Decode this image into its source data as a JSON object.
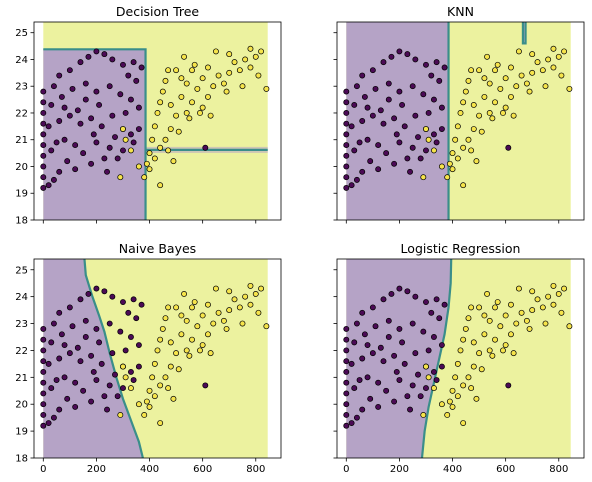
{
  "chart_data": [
    {
      "type": "scatter",
      "title": "Decision Tree",
      "xlabel": "",
      "ylabel": "",
      "xlim": [
        -35,
        895
      ],
      "ylim": [
        18,
        25.4
      ],
      "xticks": [
        "0",
        "200",
        "400",
        "600",
        "800"
      ],
      "yticks": [
        "18",
        "19",
        "20",
        "21",
        "22",
        "23",
        "24",
        "25"
      ],
      "show_xtick_labels": false,
      "show_ytick_labels": true,
      "grid": false,
      "colors": {
        "class_0_region": "#b5a3c6",
        "class_1_region": "#ecf29f",
        "boundary": "#3a8e8a",
        "class_0_point": "#4b0a55",
        "class_1_point": "#f6e44b",
        "edge": "#000000"
      },
      "boundary_kind": "tree"
    },
    {
      "type": "scatter",
      "title": "KNN",
      "xlabel": "",
      "ylabel": "",
      "xlim": [
        -35,
        895
      ],
      "ylim": [
        18,
        25.4
      ],
      "xticks": [
        "0",
        "200",
        "400",
        "600",
        "800"
      ],
      "yticks": [
        "18",
        "19",
        "20",
        "21",
        "22",
        "23",
        "24",
        "25"
      ],
      "show_xtick_labels": false,
      "show_ytick_labels": false,
      "grid": false,
      "colors": {
        "class_0_region": "#b5a3c6",
        "class_1_region": "#ecf29f",
        "boundary": "#3a8e8a",
        "class_0_point": "#4b0a55",
        "class_1_point": "#f6e44b",
        "edge": "#000000"
      },
      "boundary_kind": "knn"
    },
    {
      "type": "scatter",
      "title": "Naive Bayes",
      "xlabel": "",
      "ylabel": "",
      "xlim": [
        -35,
        895
      ],
      "ylim": [
        18,
        25.4
      ],
      "xticks": [
        "0",
        "200",
        "400",
        "600",
        "800"
      ],
      "yticks": [
        "18",
        "19",
        "20",
        "21",
        "22",
        "23",
        "24",
        "25"
      ],
      "show_xtick_labels": true,
      "show_ytick_labels": true,
      "grid": false,
      "colors": {
        "class_0_region": "#b5a3c6",
        "class_1_region": "#ecf29f",
        "boundary": "#3a8e8a",
        "class_0_point": "#4b0a55",
        "class_1_point": "#f6e44b",
        "edge": "#000000"
      },
      "boundary_kind": "nb"
    },
    {
      "type": "scatter",
      "title": "Logistic Regression",
      "xlabel": "",
      "ylabel": "",
      "xlim": [
        -35,
        895
      ],
      "ylim": [
        18,
        25.4
      ],
      "xticks": [
        "0",
        "200",
        "400",
        "600",
        "800"
      ],
      "yticks": [
        "18",
        "19",
        "20",
        "21",
        "22",
        "23",
        "24",
        "25"
      ],
      "show_xtick_labels": true,
      "show_ytick_labels": false,
      "grid": false,
      "colors": {
        "class_0_region": "#b5a3c6",
        "class_1_region": "#ecf29f",
        "boundary": "#3a8e8a",
        "class_0_point": "#4b0a55",
        "class_1_point": "#f6e44b",
        "edge": "#000000"
      },
      "boundary_kind": "lr"
    }
  ],
  "scatter_points": {
    "class_0": [
      [
        0,
        19.2
      ],
      [
        0,
        19.6
      ],
      [
        0,
        20.0
      ],
      [
        0,
        20.4
      ],
      [
        0,
        20.8
      ],
      [
        0,
        21.2
      ],
      [
        0,
        21.6
      ],
      [
        0,
        22.0
      ],
      [
        0,
        22.4
      ],
      [
        0,
        22.8
      ],
      [
        20,
        19.3
      ],
      [
        40,
        19.5
      ],
      [
        60,
        19.8
      ],
      [
        30,
        20.6
      ],
      [
        50,
        20.9
      ],
      [
        80,
        21.0
      ],
      [
        120,
        20.8
      ],
      [
        150,
        20.5
      ],
      [
        200,
        20.9
      ],
      [
        250,
        20.7
      ],
      [
        280,
        20.3
      ],
      [
        20,
        21.5
      ],
      [
        60,
        21.7
      ],
      [
        100,
        21.9
      ],
      [
        140,
        21.6
      ],
      [
        180,
        21.8
      ],
      [
        220,
        21.5
      ],
      [
        260,
        21.9
      ],
      [
        300,
        21.4
      ],
      [
        330,
        21.2
      ],
      [
        30,
        22.3
      ],
      [
        70,
        22.6
      ],
      [
        110,
        22.9
      ],
      [
        160,
        23.1
      ],
      [
        200,
        22.8
      ],
      [
        250,
        23.0
      ],
      [
        290,
        22.7
      ],
      [
        330,
        22.5
      ],
      [
        360,
        22.2
      ],
      [
        60,
        23.4
      ],
      [
        100,
        23.6
      ],
      [
        140,
        23.9
      ],
      [
        170,
        24.1
      ],
      [
        200,
        24.3
      ],
      [
        230,
        24.2
      ],
      [
        260,
        24.0
      ],
      [
        300,
        23.8
      ],
      [
        340,
        23.9
      ],
      [
        120,
        19.9
      ],
      [
        180,
        20.1
      ],
      [
        240,
        19.8
      ],
      [
        300,
        20.6
      ],
      [
        340,
        20.9
      ],
      [
        360,
        21.4
      ],
      [
        90,
        20.2
      ],
      [
        210,
        22.3
      ],
      [
        130,
        22.1
      ],
      [
        320,
        23.4
      ],
      [
        40,
        23.0
      ],
      [
        80,
        22.2
      ],
      [
        160,
        22.5
      ],
      [
        190,
        21.2
      ],
      [
        230,
        20.3
      ],
      [
        270,
        21.1
      ],
      [
        310,
        22.0
      ],
      [
        350,
        23.2
      ],
      [
        370,
        23.7
      ],
      [
        610,
        20.7
      ]
    ],
    "class_1": [
      [
        380,
        19.6
      ],
      [
        390,
        20.1
      ],
      [
        400,
        20.5
      ],
      [
        410,
        21.0
      ],
      [
        420,
        21.5
      ],
      [
        430,
        22.0
      ],
      [
        440,
        22.4
      ],
      [
        450,
        22.8
      ],
      [
        460,
        23.2
      ],
      [
        470,
        23.6
      ],
      [
        480,
        22.3
      ],
      [
        500,
        21.9
      ],
      [
        520,
        22.6
      ],
      [
        540,
        23.1
      ],
      [
        560,
        22.4
      ],
      [
        580,
        22.9
      ],
      [
        600,
        23.3
      ],
      [
        620,
        22.6
      ],
      [
        640,
        23.0
      ],
      [
        660,
        23.4
      ],
      [
        680,
        23.1
      ],
      [
        700,
        23.5
      ],
      [
        720,
        23.9
      ],
      [
        740,
        23.6
      ],
      [
        760,
        24.0
      ],
      [
        780,
        23.7
      ],
      [
        800,
        24.1
      ],
      [
        820,
        24.3
      ],
      [
        840,
        22.9
      ],
      [
        500,
        23.6
      ],
      [
        520,
        23.3
      ],
      [
        480,
        21.4
      ],
      [
        460,
        21.0
      ],
      [
        440,
        20.7
      ],
      [
        420,
        20.3
      ],
      [
        400,
        19.9
      ],
      [
        540,
        22.0
      ],
      [
        560,
        23.6
      ],
      [
        600,
        22.2
      ],
      [
        620,
        23.7
      ],
      [
        650,
        24.3
      ],
      [
        700,
        24.2
      ],
      [
        490,
        20.2
      ],
      [
        470,
        20.6
      ],
      [
        510,
        21.3
      ],
      [
        550,
        21.8
      ],
      [
        590,
        22.0
      ],
      [
        630,
        21.9
      ],
      [
        570,
        23.8
      ],
      [
        530,
        24.1
      ],
      [
        300,
        21.4
      ],
      [
        310,
        21.0
      ],
      [
        330,
        20.6
      ],
      [
        290,
        19.6
      ],
      [
        360,
        20.0
      ],
      [
        440,
        19.3
      ],
      [
        690,
        22.8
      ],
      [
        750,
        23.0
      ],
      [
        780,
        24.4
      ],
      [
        810,
        23.4
      ]
    ]
  }
}
